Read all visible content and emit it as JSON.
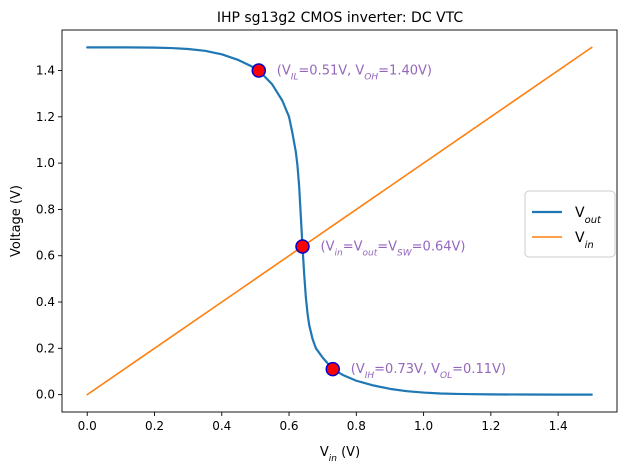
{
  "chart_data": {
    "type": "line",
    "title": "IHP sg13g2 CMOS inverter: DC VTC",
    "xlabel": {
      "main": "V",
      "sub": "in",
      "tail": " (V)"
    },
    "ylabel": "Voltage (V)",
    "xlim": [
      -0.075,
      1.575
    ],
    "ylim": [
      -0.075,
      1.575
    ],
    "xticks": [
      0.0,
      0.2,
      0.4,
      0.6,
      0.8,
      1.0,
      1.2,
      1.4
    ],
    "yticks": [
      0.0,
      0.2,
      0.4,
      0.6,
      0.8,
      1.0,
      1.2,
      1.4
    ],
    "tick_labels_x": [
      "0.0",
      "0.2",
      "0.4",
      "0.6",
      "0.8",
      "1.0",
      "1.2",
      "1.4"
    ],
    "tick_labels_y": [
      "0.0",
      "0.2",
      "0.4",
      "0.6",
      "0.8",
      "1.0",
      "1.2",
      "1.4"
    ],
    "series": [
      {
        "name": "Vout",
        "label": {
          "main": "V",
          "sub": "out"
        },
        "color": "#1f77b4",
        "width": 2.2,
        "x": [
          0.0,
          0.1,
          0.2,
          0.25,
          0.3,
          0.35,
          0.4,
          0.45,
          0.5,
          0.51,
          0.55,
          0.58,
          0.6,
          0.61,
          0.62,
          0.625,
          0.63,
          0.635,
          0.64,
          0.645,
          0.65,
          0.655,
          0.66,
          0.67,
          0.68,
          0.7,
          0.73,
          0.76,
          0.8,
          0.85,
          0.9,
          0.95,
          1.0,
          1.05,
          1.1,
          1.15,
          1.2,
          1.3,
          1.4,
          1.5
        ],
        "y": [
          1.5,
          1.5,
          1.499,
          1.497,
          1.493,
          1.485,
          1.47,
          1.445,
          1.41,
          1.4,
          1.34,
          1.27,
          1.2,
          1.13,
          1.05,
          0.99,
          0.9,
          0.77,
          0.64,
          0.52,
          0.42,
          0.35,
          0.3,
          0.24,
          0.2,
          0.16,
          0.11,
          0.085,
          0.06,
          0.04,
          0.025,
          0.015,
          0.009,
          0.005,
          0.003,
          0.002,
          0.001,
          0.0005,
          0.0002,
          0.0001
        ]
      },
      {
        "name": "Vin",
        "label": {
          "main": "V",
          "sub": "in"
        },
        "color": "#ff7f0e",
        "width": 1.6,
        "x": [
          0.0,
          1.5
        ],
        "y": [
          0.0,
          1.5
        ]
      }
    ],
    "markers": [
      {
        "x": 0.51,
        "y": 1.4,
        "fill": "#ff0000",
        "edge": "#0000cc"
      },
      {
        "x": 0.64,
        "y": 0.64,
        "fill": "#ff0000",
        "edge": "#0000cc"
      },
      {
        "x": 0.73,
        "y": 0.11,
        "fill": "#ff0000",
        "edge": "#0000cc"
      }
    ],
    "annotations": [
      {
        "x": 0.51,
        "y": 1.4,
        "color": "#9467bd",
        "parts": [
          [
            "(V",
            ""
          ],
          [
            "IL",
            "sub"
          ],
          [
            "=0.51V, V",
            ""
          ],
          [
            "OH",
            "sub"
          ],
          [
            "=1.40V)",
            ""
          ]
        ]
      },
      {
        "x": 0.64,
        "y": 0.64,
        "color": "#9467bd",
        "parts": [
          [
            "(V",
            ""
          ],
          [
            "in",
            "sub"
          ],
          [
            "=V",
            ""
          ],
          [
            "out",
            "sub"
          ],
          [
            "=V",
            ""
          ],
          [
            "SW",
            "sub"
          ],
          [
            "=0.64V)",
            ""
          ]
        ]
      },
      {
        "x": 0.73,
        "y": 0.11,
        "color": "#9467bd",
        "parts": [
          [
            "(V",
            ""
          ],
          [
            "IH",
            "sub"
          ],
          [
            "=0.73V, V",
            ""
          ],
          [
            "OL",
            "sub"
          ],
          [
            "=0.11V)",
            ""
          ]
        ]
      }
    ],
    "legend_location": "center-right"
  }
}
